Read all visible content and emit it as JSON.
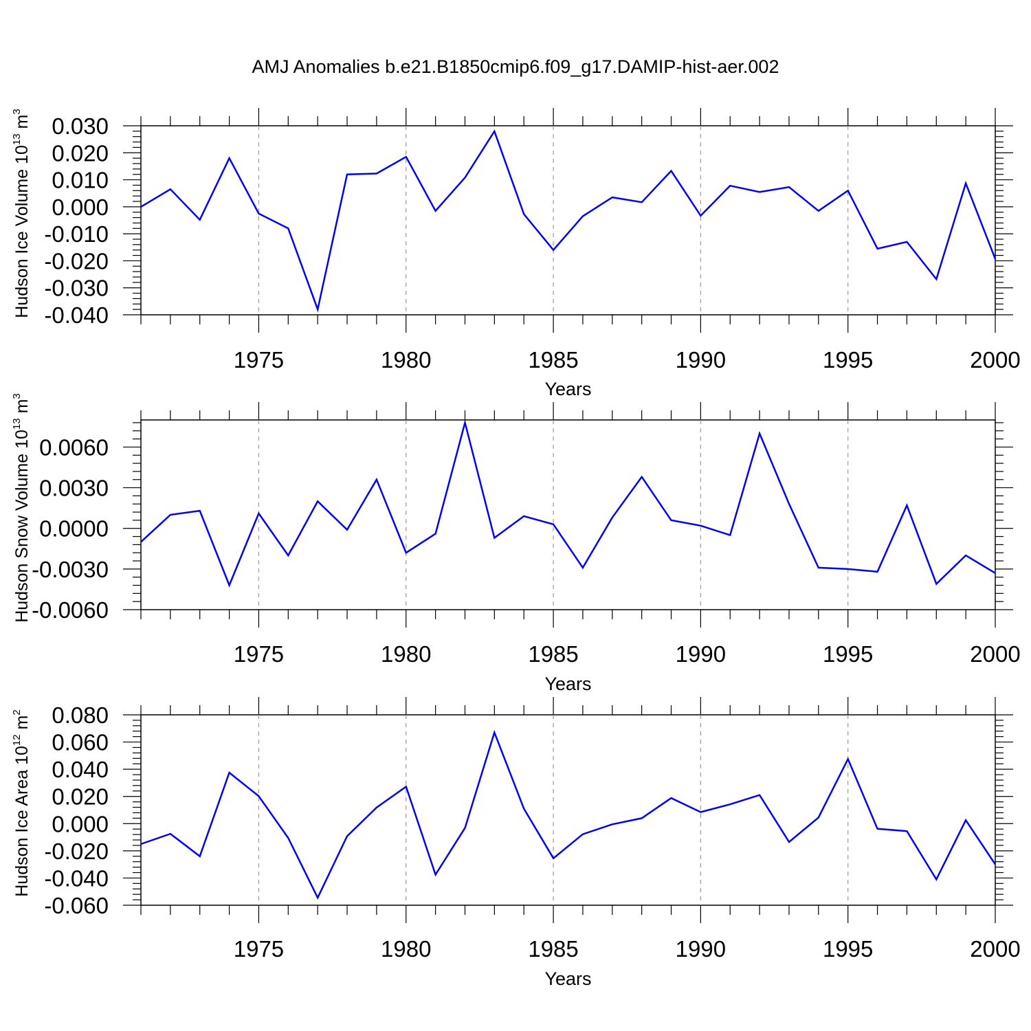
{
  "title": "AMJ Anomalies b.e21.B1850cmip6.f09_g17.DAMIP-hist-aer.002",
  "colors": {
    "line": "#0000ff",
    "axes": "#000000",
    "grid": "#999999"
  },
  "chart_data": [
    {
      "type": "line",
      "ylabel_main": "Hudson Ice Volume 10",
      "ylabel_exp": "13",
      "ylabel_unit": " m",
      "ylabel_unit_exp": "3",
      "xlabel": "Years",
      "xlim": [
        1971,
        2000
      ],
      "ylim": [
        -0.04,
        0.03
      ],
      "yticks": [
        0.03,
        0.02,
        0.01,
        0.0,
        -0.01,
        -0.02,
        -0.03,
        -0.04
      ],
      "ytick_labels": [
        "0.030",
        "0.020",
        "0.010",
        "0.000",
        "-0.010",
        "-0.020",
        "-0.030",
        "-0.040"
      ],
      "xticks": [
        1975,
        1980,
        1985,
        1990,
        1995,
        2000
      ],
      "xtick_labels": [
        "1975",
        "1980",
        "1985",
        "1990",
        "1995",
        "2000"
      ],
      "grid_x": [
        1975,
        1980,
        1985,
        1990,
        1995
      ],
      "x": [
        1971,
        1972,
        1973,
        1974,
        1975,
        1976,
        1977,
        1978,
        1979,
        1980,
        1981,
        1982,
        1983,
        1984,
        1985,
        1986,
        1987,
        1988,
        1989,
        1990,
        1991,
        1992,
        1993,
        1994,
        1995,
        1996,
        1997,
        1998,
        1999,
        2000
      ],
      "values": [
        0.0,
        0.0065,
        -0.0048,
        0.018,
        -0.0025,
        -0.008,
        -0.038,
        0.012,
        0.0123,
        0.0185,
        -0.0015,
        0.0108,
        0.028,
        -0.0027,
        -0.016,
        -0.0035,
        0.0035,
        0.0017,
        0.0133,
        -0.0033,
        0.0078,
        0.0055,
        0.0073,
        -0.0015,
        0.006,
        -0.0155,
        -0.013,
        -0.0268,
        0.0087,
        -0.0193
      ]
    },
    {
      "type": "line",
      "ylabel_main": "Hudson Snow Volume 10",
      "ylabel_exp": "13",
      "ylabel_unit": " m",
      "ylabel_unit_exp": "3",
      "xlabel": "Years",
      "xlim": [
        1971,
        2000
      ],
      "ylim": [
        -0.006,
        0.008
      ],
      "yticks": [
        0.006,
        0.003,
        0.0,
        -0.003,
        -0.006
      ],
      "ytick_labels": [
        "0.0060",
        "0.0030",
        "0.0000",
        "-0.0030",
        "-0.0060"
      ],
      "xticks": [
        1975,
        1980,
        1985,
        1990,
        1995,
        2000
      ],
      "xtick_labels": [
        "1975",
        "1980",
        "1985",
        "1990",
        "1995",
        "2000"
      ],
      "grid_x": [
        1975,
        1980,
        1985,
        1990,
        1995
      ],
      "x": [
        1971,
        1972,
        1973,
        1974,
        1975,
        1976,
        1977,
        1978,
        1979,
        1980,
        1981,
        1982,
        1983,
        1984,
        1985,
        1986,
        1987,
        1988,
        1989,
        1990,
        1991,
        1992,
        1993,
        1994,
        1995,
        1996,
        1997,
        1998,
        1999,
        2000
      ],
      "values": [
        -0.001,
        0.001,
        0.0013,
        -0.0042,
        0.0011,
        -0.002,
        0.002,
        -0.0001,
        0.0036,
        -0.0018,
        -0.0004,
        0.0078,
        -0.0007,
        0.0009,
        0.0003,
        -0.0029,
        0.0008,
        0.0038,
        0.0006,
        0.0002,
        -0.0005,
        0.007,
        0.0018,
        -0.0029,
        -0.003,
        -0.0032,
        0.0017,
        -0.0041,
        -0.002,
        -0.0033
      ]
    },
    {
      "type": "line",
      "ylabel_main": "Hudson Ice Area 10",
      "ylabel_exp": "12",
      "ylabel_unit": " m",
      "ylabel_unit_exp": "2",
      "xlabel": "Years",
      "xlim": [
        1971,
        2000
      ],
      "ylim": [
        -0.06,
        0.08
      ],
      "yticks": [
        0.08,
        0.06,
        0.04,
        0.02,
        0.0,
        -0.02,
        -0.04,
        -0.06
      ],
      "ytick_labels": [
        "0.080",
        "0.060",
        "0.040",
        "0.020",
        "0.000",
        "-0.020",
        "-0.040",
        "-0.060"
      ],
      "xticks": [
        1975,
        1980,
        1985,
        1990,
        1995,
        2000
      ],
      "xtick_labels": [
        "1975",
        "1980",
        "1985",
        "1990",
        "1995",
        "2000"
      ],
      "grid_x": [
        1975,
        1980,
        1985,
        1990,
        1995
      ],
      "x": [
        1971,
        1972,
        1973,
        1974,
        1975,
        1976,
        1977,
        1978,
        1979,
        1980,
        1981,
        1982,
        1983,
        1984,
        1985,
        1986,
        1987,
        1988,
        1989,
        1990,
        1991,
        1992,
        1993,
        1994,
        1995,
        1996,
        1997,
        1998,
        1999,
        2000
      ],
      "values": [
        -0.015,
        -0.0075,
        -0.024,
        0.0375,
        0.0202,
        -0.0105,
        -0.0545,
        -0.0092,
        0.0118,
        0.0272,
        -0.0375,
        -0.0032,
        0.067,
        0.011,
        -0.0255,
        -0.0078,
        -0.0005,
        0.004,
        0.0188,
        0.0085,
        0.0142,
        0.021,
        -0.0135,
        0.0045,
        0.0475,
        -0.0038,
        -0.0055,
        -0.041,
        0.0025,
        -0.03
      ]
    }
  ]
}
